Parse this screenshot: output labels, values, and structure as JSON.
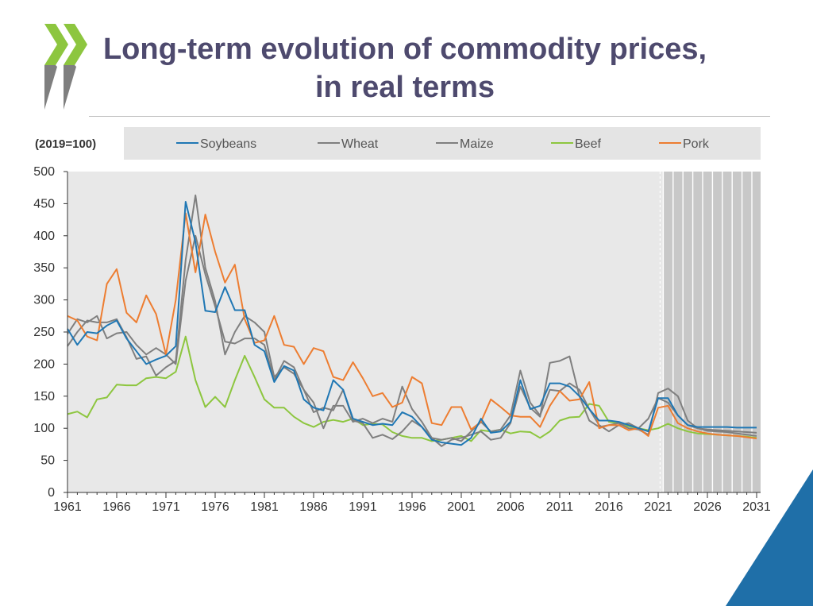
{
  "slide": {
    "title_line1": "Long-term evolution of commodity prices,",
    "title_line2": "in real terms"
  },
  "chart_data": {
    "type": "line",
    "unit_label": "(2019=100)",
    "years": [
      1961,
      1962,
      1963,
      1964,
      1965,
      1966,
      1967,
      1968,
      1969,
      1970,
      1971,
      1972,
      1973,
      1974,
      1975,
      1976,
      1977,
      1978,
      1979,
      1980,
      1981,
      1982,
      1983,
      1984,
      1985,
      1986,
      1987,
      1988,
      1989,
      1990,
      1991,
      1992,
      1993,
      1994,
      1995,
      1996,
      1997,
      1998,
      1999,
      2000,
      2001,
      2002,
      2003,
      2004,
      2005,
      2006,
      2007,
      2008,
      2009,
      2010,
      2011,
      2012,
      2013,
      2014,
      2015,
      2016,
      2017,
      2018,
      2019,
      2020,
      2021,
      2022,
      2023,
      2024,
      2025,
      2026,
      2027,
      2028,
      2029,
      2030,
      2031
    ],
    "x_ticks": [
      "1961",
      "1966",
      "1971",
      "1976",
      "1981",
      "1986",
      "1991",
      "1996",
      "2001",
      "2006",
      "2011",
      "2016",
      "2021",
      "2026",
      "2031"
    ],
    "ylim": [
      0,
      500
    ],
    "y_ticks": [
      0,
      50,
      100,
      150,
      200,
      250,
      300,
      350,
      400,
      450,
      500
    ],
    "projection_start": 2022,
    "series": [
      {
        "name": "Soybeans",
        "color": "#1f77b4",
        "values": [
          255,
          230,
          250,
          248,
          260,
          268,
          240,
          220,
          200,
          207,
          213,
          228,
          453,
          390,
          283,
          281,
          320,
          284,
          284,
          230,
          220,
          172,
          197,
          190,
          145,
          132,
          128,
          175,
          160,
          115,
          110,
          105,
          107,
          105,
          125,
          118,
          102,
          82,
          78,
          76,
          74,
          85,
          115,
          93,
          95,
          110,
          175,
          130,
          135,
          170,
          170,
          165,
          150,
          130,
          112,
          112,
          110,
          105,
          100,
          95,
          147,
          147,
          120,
          105,
          102,
          102,
          102,
          102,
          101,
          101,
          101
        ]
      },
      {
        "name": "Wheat",
        "color": "#7f7f7f",
        "values": [
          247,
          270,
          265,
          275,
          240,
          248,
          250,
          230,
          215,
          225,
          215,
          200,
          330,
          400,
          340,
          290,
          235,
          232,
          240,
          240,
          230,
          175,
          205,
          195,
          160,
          140,
          100,
          135,
          135,
          110,
          115,
          108,
          115,
          110,
          165,
          130,
          110,
          85,
          82,
          85,
          80,
          95,
          110,
          95,
          98,
          120,
          190,
          140,
          120,
          160,
          158,
          170,
          160,
          130,
          105,
          95,
          105,
          108,
          100,
          115,
          147,
          140,
          120,
          105,
          100,
          98,
          97,
          96,
          95,
          94,
          93
        ]
      },
      {
        "name": "Maize",
        "color": "#7f7f7f",
        "values": [
          228,
          250,
          268,
          265,
          265,
          270,
          242,
          208,
          212,
          182,
          195,
          205,
          362,
          463,
          350,
          298,
          215,
          250,
          275,
          265,
          250,
          180,
          195,
          185,
          160,
          125,
          132,
          128,
          160,
          112,
          108,
          85,
          90,
          83,
          95,
          112,
          102,
          85,
          72,
          82,
          85,
          90,
          95,
          82,
          85,
          108,
          165,
          132,
          118,
          202,
          205,
          212,
          150,
          112,
          102,
          105,
          108,
          100,
          98,
          90,
          155,
          162,
          150,
          112,
          100,
          96,
          95,
          94,
          92,
          90,
          88
        ]
      },
      {
        "name": "Beef",
        "color": "#8dc63f",
        "values": [
          122,
          126,
          117,
          145,
          148,
          168,
          167,
          167,
          178,
          180,
          178,
          188,
          243,
          175,
          133,
          149,
          133,
          175,
          213,
          180,
          145,
          132,
          132,
          118,
          108,
          102,
          110,
          113,
          110,
          115,
          105,
          107,
          106,
          94,
          88,
          85,
          85,
          80,
          82,
          85,
          88,
          80,
          97,
          95,
          98,
          92,
          95,
          94,
          85,
          95,
          112,
          117,
          118,
          138,
          135,
          110,
          108,
          103,
          100,
          97,
          100,
          107,
          100,
          95,
          92,
          91,
          90,
          89,
          88,
          87,
          85
        ]
      },
      {
        "name": "Pork",
        "color": "#ed7d31",
        "values": [
          275,
          268,
          243,
          237,
          325,
          348,
          280,
          265,
          307,
          278,
          215,
          300,
          435,
          343,
          433,
          375,
          327,
          355,
          270,
          233,
          237,
          275,
          230,
          227,
          200,
          225,
          220,
          180,
          175,
          203,
          178,
          150,
          155,
          133,
          140,
          180,
          170,
          108,
          105,
          133,
          133,
          98,
          110,
          145,
          133,
          120,
          118,
          118,
          102,
          135,
          158,
          143,
          145,
          172,
          100,
          105,
          105,
          97,
          100,
          88,
          132,
          135,
          108,
          100,
          95,
          92,
          90,
          89,
          88,
          86,
          84
        ]
      }
    ]
  }
}
